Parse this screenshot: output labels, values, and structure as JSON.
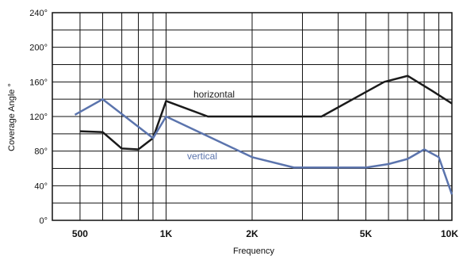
{
  "chart_data": {
    "type": "line",
    "title": "",
    "xlabel": "Frequency",
    "ylabel": "Coverage Angle °",
    "x_scale": "log",
    "xlim": [
      400,
      10000
    ],
    "ylim": [
      0,
      240
    ],
    "grid": true,
    "y_ticks": [
      0,
      40,
      80,
      120,
      160,
      200,
      240
    ],
    "y_tick_labels": [
      "0°",
      "40°",
      "80°",
      "120°",
      "160°",
      "200°",
      "240°"
    ],
    "x_ticks": [
      500,
      1000,
      2000,
      5000,
      10000
    ],
    "x_tick_labels": [
      "500",
      "1K",
      "2K",
      "5K",
      "10K"
    ],
    "series": [
      {
        "name": "horizontal",
        "color": "#1a1a1a",
        "x": [
          500,
          600,
          700,
          800,
          900,
          1000,
          1400,
          2000,
          3500,
          4500,
          5800,
          7000,
          8500,
          10000
        ],
        "y": [
          103,
          102,
          83,
          82,
          95,
          138,
          120,
          120,
          120,
          140,
          160,
          167,
          150,
          135
        ]
      },
      {
        "name": "vertical",
        "color": "#5b74ad",
        "x": [
          480,
          600,
          900,
          1000,
          2000,
          2800,
          5000,
          6000,
          7000,
          8000,
          9000,
          10000
        ],
        "y": [
          122,
          140,
          95,
          120,
          73,
          61,
          61,
          65,
          71,
          82,
          73,
          30
        ]
      }
    ]
  }
}
